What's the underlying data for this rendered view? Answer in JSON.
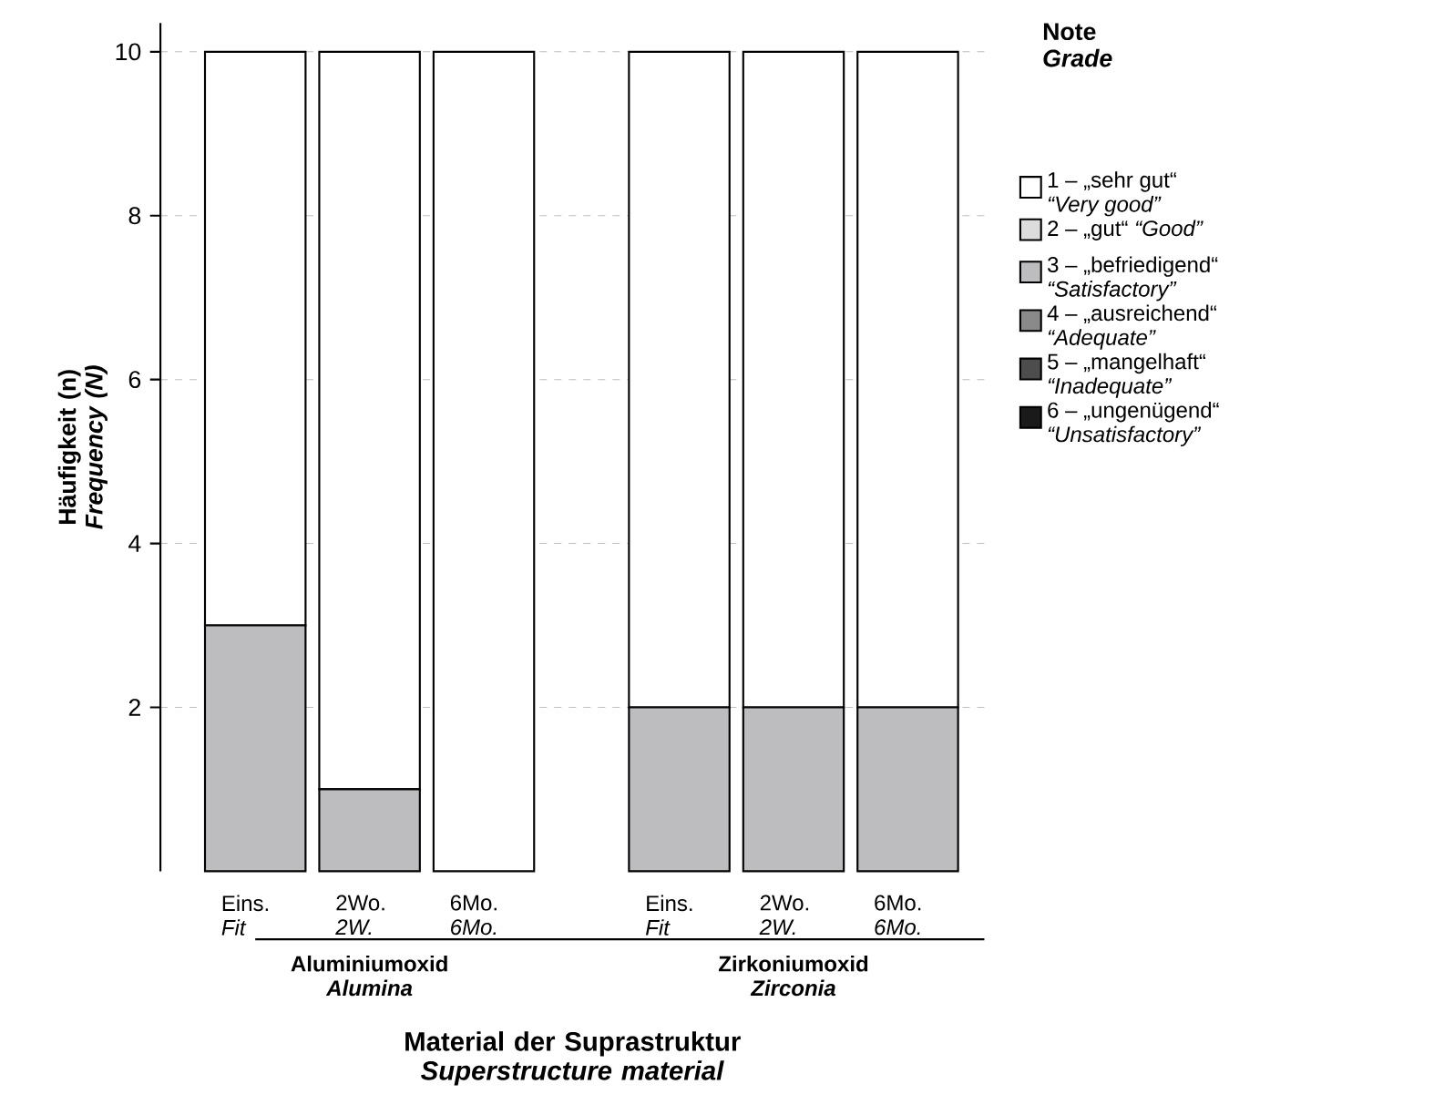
{
  "chart_data": {
    "type": "bar",
    "stacked": true,
    "categories": [
      "Eins. *Fit*",
      "2Wo. *2W.*",
      "6Mo. *6Mo.*",
      "Eins. *Fit*",
      "2Wo. *2W.*",
      "6Mo. *6Mo.*"
    ],
    "series": [
      {
        "name": "6 – „ungenügend“ *“Unsatisfactory”*",
        "color": "#1a1a1a",
        "values": [
          0,
          0,
          0,
          0,
          0,
          0
        ]
      },
      {
        "name": "5 – „mangelhaft“ *“Inadequate”*",
        "color": "#4d4d4d",
        "values": [
          0,
          0,
          0,
          0,
          0,
          0
        ]
      },
      {
        "name": "4 – „ausreichend“ *“Adequate”*",
        "color": "#8a8a8a",
        "values": [
          0,
          0,
          0,
          0,
          0,
          0
        ]
      },
      {
        "name": "3 – „befriedigend“ *“Satisfactory”*",
        "color": "#bdbdbf",
        "values": [
          3,
          1,
          0,
          2,
          2,
          2
        ]
      },
      {
        "name": "2 – „gut“ *“Good”*",
        "color": "#dcdcdc",
        "values": [
          0,
          0,
          0,
          0,
          0,
          0
        ]
      },
      {
        "name": "1 – „sehr gut“ *“Very good”*",
        "color": "#ffffff",
        "values": [
          7,
          9,
          10,
          8,
          8,
          8
        ]
      }
    ],
    "ylim": [
      0,
      10.35
    ],
    "yticks": [
      2,
      4,
      6,
      8,
      10
    ],
    "grid": "y",
    "legend": "right",
    "legend_title": "Note *Grade*",
    "xlabel": "Material der Suprastruktur *Superstructure material*",
    "ylabel": "Häufigkeit (n) *Frequency (N)*",
    "annotations": [
      "Aluminiumoxid *Alumina*",
      "Zirkoniumoxid *Zirconia*"
    ]
  }
}
